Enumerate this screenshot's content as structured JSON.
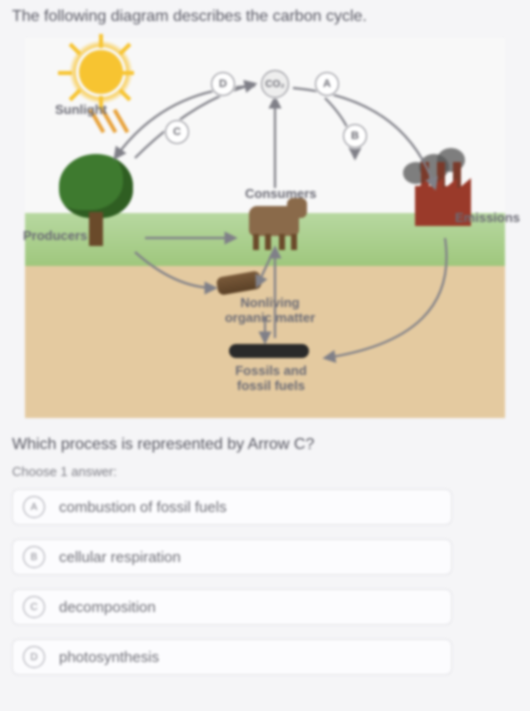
{
  "intro": "The following diagram describes the carbon cycle.",
  "diagram": {
    "labels": {
      "sunlight": "Sunlight",
      "producers": "Producers",
      "consumers": "Consumers",
      "emissions": "Emissions",
      "nonliving": "Nonliving\norganic matter",
      "fossils": "Fossils and\nfossil fuels"
    },
    "nodes": {
      "a": "A",
      "b": "B",
      "c": "C",
      "d": "D",
      "co2": "CO₂"
    },
    "colors": {
      "sky": "#f8f8f8",
      "grass_top": "#b7d8a0",
      "grass_bot": "#9fc77d",
      "soil": "#e4caa0",
      "sun": "#f7c431",
      "tree": "#3e7a2f",
      "trunk": "#6a4a2a",
      "cow": "#8a6a4a",
      "factory": "#9a3a2a",
      "smoke": "#555555",
      "arrow": "#808088",
      "fossil": "#2a2a2a"
    }
  },
  "question": "Which process is represented by Arrow C?",
  "choose": "Choose 1 answer:",
  "answers": [
    {
      "letter": "A",
      "text": "combustion of fossil fuels"
    },
    {
      "letter": "B",
      "text": "cellular respiration"
    },
    {
      "letter": "C",
      "text": "decomposition"
    },
    {
      "letter": "D",
      "text": "photosynthesis"
    }
  ]
}
